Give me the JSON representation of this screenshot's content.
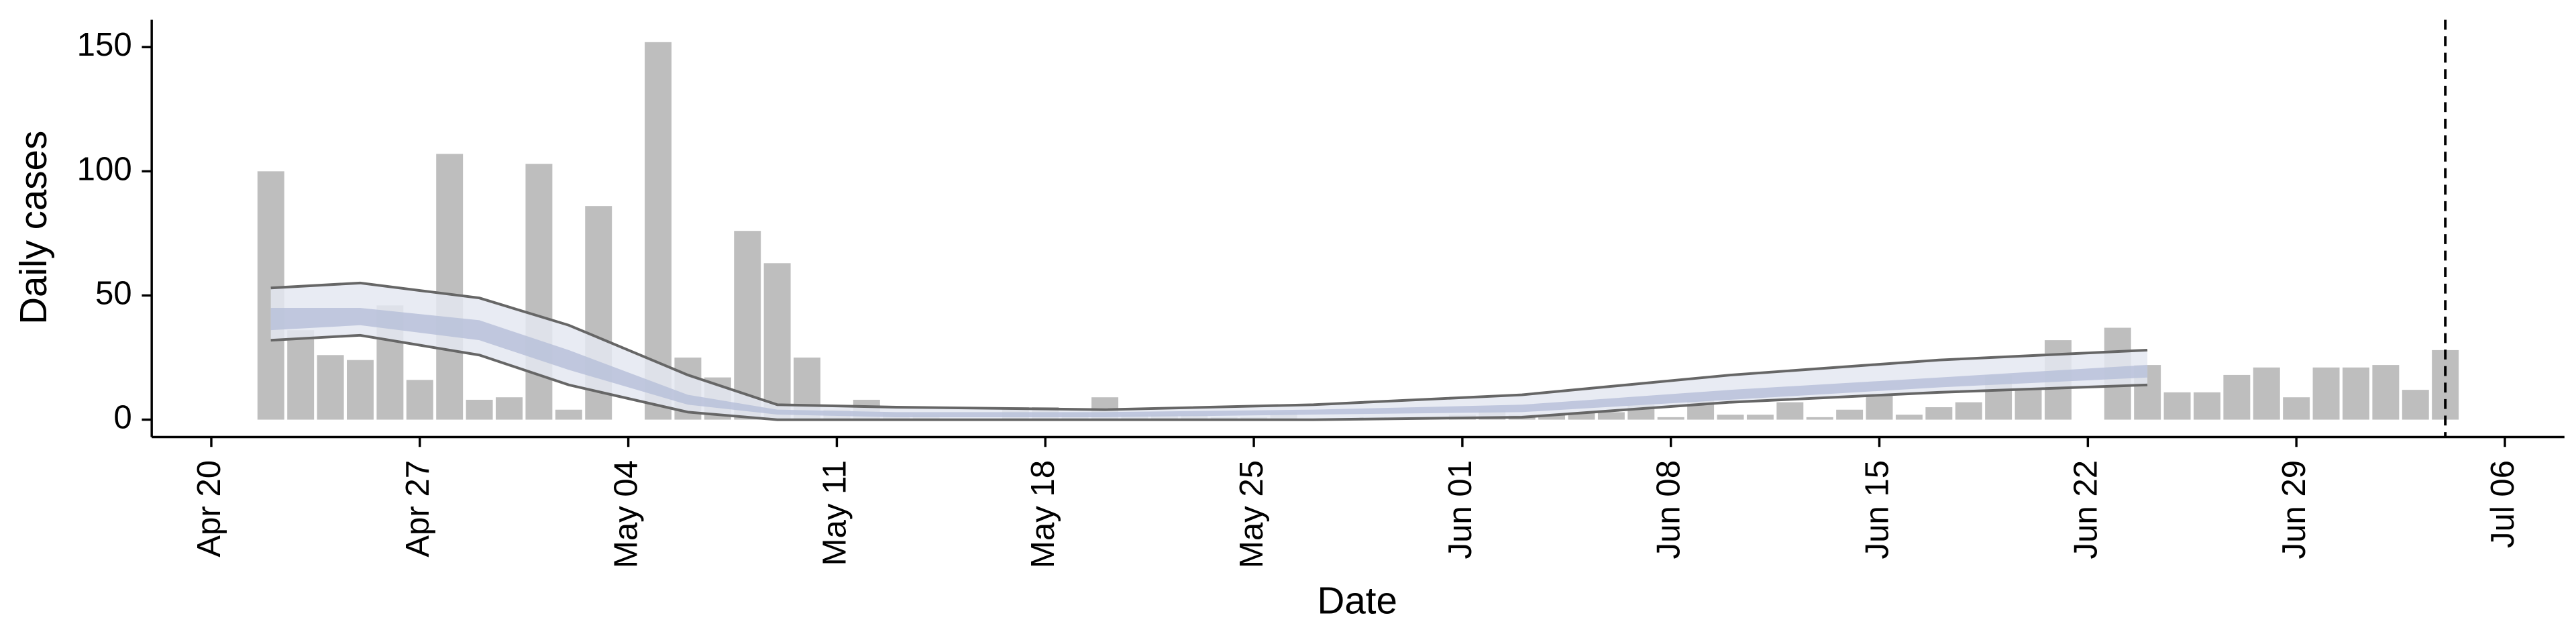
{
  "chart_data": {
    "type": "bar",
    "x_label": "Date",
    "y_label": "Daily cases",
    "x": [
      "Apr 22",
      "Apr 23",
      "Apr 24",
      "Apr 25",
      "Apr 26",
      "Apr 27",
      "Apr 28",
      "Apr 29",
      "Apr 30",
      "May 01",
      "May 02",
      "May 03",
      "May 04",
      "May 05",
      "May 06",
      "May 07",
      "May 08",
      "May 09",
      "May 10",
      "May 11",
      "May 12",
      "May 13",
      "May 14",
      "May 15",
      "May 16",
      "May 17",
      "May 18",
      "May 19",
      "May 20",
      "May 21",
      "May 22",
      "May 23",
      "May 24",
      "May 25",
      "May 26",
      "May 27",
      "May 28",
      "May 29",
      "May 30",
      "May 31",
      "Jun 01",
      "Jun 02",
      "Jun 03",
      "Jun 04",
      "Jun 05",
      "Jun 06",
      "Jun 07",
      "Jun 08",
      "Jun 09",
      "Jun 10",
      "Jun 11",
      "Jun 12",
      "Jun 13",
      "Jun 14",
      "Jun 15",
      "Jun 16",
      "Jun 17",
      "Jun 18",
      "Jun 19",
      "Jun 20",
      "Jun 21",
      "Jun 22",
      "Jun 23",
      "Jun 24",
      "Jun 25",
      "Jun 26",
      "Jun 27",
      "Jun 28",
      "Jun 29",
      "Jun 30",
      "Jul 01",
      "Jul 02",
      "Jul 03",
      "Jul 04"
    ],
    "values": [
      100,
      36,
      26,
      24,
      46,
      16,
      107,
      8,
      9,
      103,
      4,
      86,
      0,
      152,
      25,
      17,
      76,
      63,
      25,
      4,
      8,
      3,
      2,
      0,
      0,
      5,
      5,
      3,
      9,
      2,
      2,
      2,
      1,
      1,
      3,
      0,
      0,
      1,
      0,
      0,
      2,
      4,
      2,
      2,
      3,
      3,
      6,
      1,
      8,
      2,
      2,
      7,
      1,
      4,
      10,
      2,
      5,
      7,
      18,
      12,
      32,
      0,
      37,
      22,
      11,
      11,
      18,
      21,
      9,
      21,
      21,
      22,
      12,
      28
    ],
    "color": "#bebebe",
    "ribbon": {
      "x": [
        "Apr 22",
        "Apr 25",
        "Apr 29",
        "May 02",
        "May 06",
        "May 09",
        "May 13",
        "May 20",
        "May 27",
        "Jun 03",
        "Jun 10",
        "Jun 17",
        "Jun 24"
      ],
      "upper": [
        53,
        55,
        49,
        38,
        18,
        6,
        5,
        4,
        6,
        10,
        18,
        24,
        28
      ],
      "lower": [
        32,
        34,
        26,
        14,
        3,
        0,
        0,
        0,
        0,
        1,
        7,
        11,
        14
      ],
      "inner_upper": [
        45,
        45,
        40,
        28,
        10,
        4,
        3,
        3,
        4,
        6,
        12,
        17,
        22
      ],
      "inner_lower": [
        36,
        38,
        32,
        20,
        6,
        2,
        1,
        1,
        2,
        3,
        8,
        13,
        17
      ],
      "line_color": "#666666",
      "fill": "#e4e7f1",
      "inner_fill": "#b9c1d9"
    },
    "vline": "Jul 04",
    "xlim": [
      "Apr 18",
      "Jul 08"
    ],
    "xticks": [
      "Apr 20",
      "Apr 27",
      "May 04",
      "May 11",
      "May 18",
      "May 25",
      "Jun 01",
      "Jun 08",
      "Jun 15",
      "Jun 22",
      "Jun 29",
      "Jul 06"
    ],
    "ylim": [
      -7,
      161
    ],
    "yticks": [
      0,
      50,
      100,
      150
    ]
  }
}
